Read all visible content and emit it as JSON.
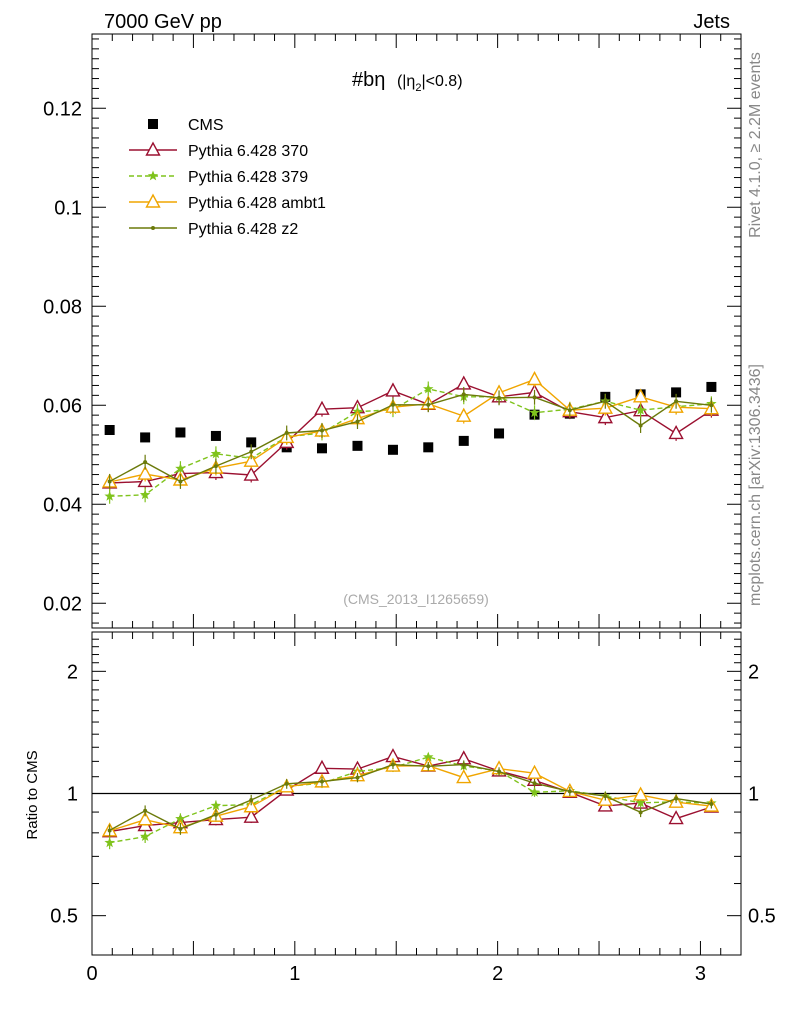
{
  "header": {
    "left": "7000 GeV pp",
    "right": "Jets"
  },
  "side_labels": {
    "rivet": "Rivet 4.1.0, ≥ 2.2M events",
    "mcplots": "mcplots.cern.ch [arXiv:1306.3436]"
  },
  "plot_title": {
    "main": "#bη",
    "sub_open": "(|η",
    "sub_index": "2",
    "sub_close": "|<0.8)"
  },
  "watermark": "(CMS_2013_I1265659)",
  "colors": {
    "cms": "#000000",
    "p370": "#9b1030",
    "p379": "#7fc31c",
    "ambt1": "#f0a500",
    "z2": "#6b7a0a"
  },
  "chart_data": [
    {
      "type": "scatter",
      "name": "main",
      "xlim": [
        0,
        3.2
      ],
      "ylim": [
        0.015,
        0.135
      ],
      "yticks": [
        "0.02",
        "0.04",
        "0.06",
        "0.08",
        "0.1",
        "0.12"
      ],
      "x": [
        0.087,
        0.262,
        0.436,
        0.611,
        0.785,
        0.96,
        1.134,
        1.309,
        1.484,
        1.658,
        1.833,
        2.007,
        2.182,
        2.356,
        2.531,
        2.705,
        2.88,
        3.054
      ],
      "series": [
        {
          "name": "CMS",
          "key": "cms",
          "marker": "square",
          "dash": "",
          "values": [
            0.055,
            0.0535,
            0.0545,
            0.0538,
            0.0525,
            0.0515,
            0.0513,
            0.0518,
            0.051,
            0.0515,
            0.0528,
            0.0543,
            0.0581,
            0.0583,
            0.0617,
            0.0622,
            0.0626,
            0.0637
          ],
          "errors": [
            0.0005,
            0.0005,
            0.0005,
            0.0005,
            0.0005,
            0.0005,
            0.0005,
            0.0005,
            0.0005,
            0.0005,
            0.0005,
            0.0005,
            0.0005,
            0.0005,
            0.0005,
            0.0005,
            0.0005,
            0.0006
          ]
        },
        {
          "name": "Pythia 6.428 370",
          "key": "p370",
          "marker": "triangle",
          "dash": "",
          "values": [
            0.0443,
            0.0446,
            0.0462,
            0.0464,
            0.0459,
            0.0525,
            0.0592,
            0.0595,
            0.0629,
            0.0602,
            0.0643,
            0.0617,
            0.0626,
            0.0587,
            0.0575,
            0.0589,
            0.0543,
            0.059
          ],
          "errors": [
            0.0015,
            0.0015,
            0.0015,
            0.0015,
            0.0015,
            0.0015,
            0.0015,
            0.0015,
            0.0015,
            0.0015,
            0.0015,
            0.0015,
            0.0015,
            0.0015,
            0.0015,
            0.0015,
            0.0015,
            0.0015
          ]
        },
        {
          "name": "Pythia 6.428 379",
          "key": "p379",
          "marker": "star",
          "dash": "5,3",
          "values": [
            0.0416,
            0.0419,
            0.0472,
            0.0502,
            0.0493,
            0.0536,
            0.0544,
            0.0587,
            0.0591,
            0.0633,
            0.0617,
            0.0617,
            0.0585,
            0.0592,
            0.0608,
            0.059,
            0.0597,
            0.0603
          ],
          "errors": [
            0.0015,
            0.0015,
            0.0015,
            0.0015,
            0.0015,
            0.0015,
            0.0015,
            0.0015,
            0.0015,
            0.0015,
            0.0015,
            0.0015,
            0.0015,
            0.0015,
            0.0015,
            0.0015,
            0.0015,
            0.0015
          ]
        },
        {
          "name": "Pythia 6.428 ambt1",
          "key": "ambt1",
          "marker": "triangle",
          "dash": "",
          "values": [
            0.0445,
            0.0461,
            0.0449,
            0.0473,
            0.0487,
            0.0535,
            0.0548,
            0.0573,
            0.0596,
            0.0603,
            0.0578,
            0.0625,
            0.0652,
            0.059,
            0.0594,
            0.0617,
            0.0596,
            0.0593
          ],
          "errors": [
            0.0015,
            0.0015,
            0.0015,
            0.0015,
            0.0015,
            0.0015,
            0.0015,
            0.0015,
            0.0015,
            0.0015,
            0.0015,
            0.0015,
            0.0015,
            0.0015,
            0.0015,
            0.0015,
            0.0015,
            0.0015
          ]
        },
        {
          "name": "Pythia 6.428 z2",
          "key": "z2",
          "marker": "dot",
          "dash": "",
          "values": [
            0.0446,
            0.0485,
            0.0446,
            0.0477,
            0.0506,
            0.0544,
            0.0549,
            0.0567,
            0.0601,
            0.0601,
            0.0622,
            0.0615,
            0.0616,
            0.059,
            0.0608,
            0.0559,
            0.0608,
            0.06
          ],
          "errors": [
            0.0015,
            0.0015,
            0.0015,
            0.0015,
            0.0015,
            0.0015,
            0.0015,
            0.0015,
            0.0015,
            0.0015,
            0.0015,
            0.0015,
            0.0015,
            0.0015,
            0.0015,
            0.0015,
            0.0015,
            0.0015
          ]
        }
      ],
      "legend_position": "top-left"
    },
    {
      "type": "scatter",
      "name": "ratio",
      "ylabel": "Ratio to CMS",
      "xlim": [
        0,
        3.2
      ],
      "ylim": [
        0.4,
        2.5
      ],
      "ylog": true,
      "yticks": [
        "0.5",
        "1",
        "2"
      ],
      "ytick_values": [
        0.5,
        1,
        2
      ],
      "xticks": [
        "0",
        "1",
        "2",
        "3"
      ],
      "xtick_values": [
        0,
        1,
        2,
        3
      ],
      "reference_line": 1
    }
  ]
}
